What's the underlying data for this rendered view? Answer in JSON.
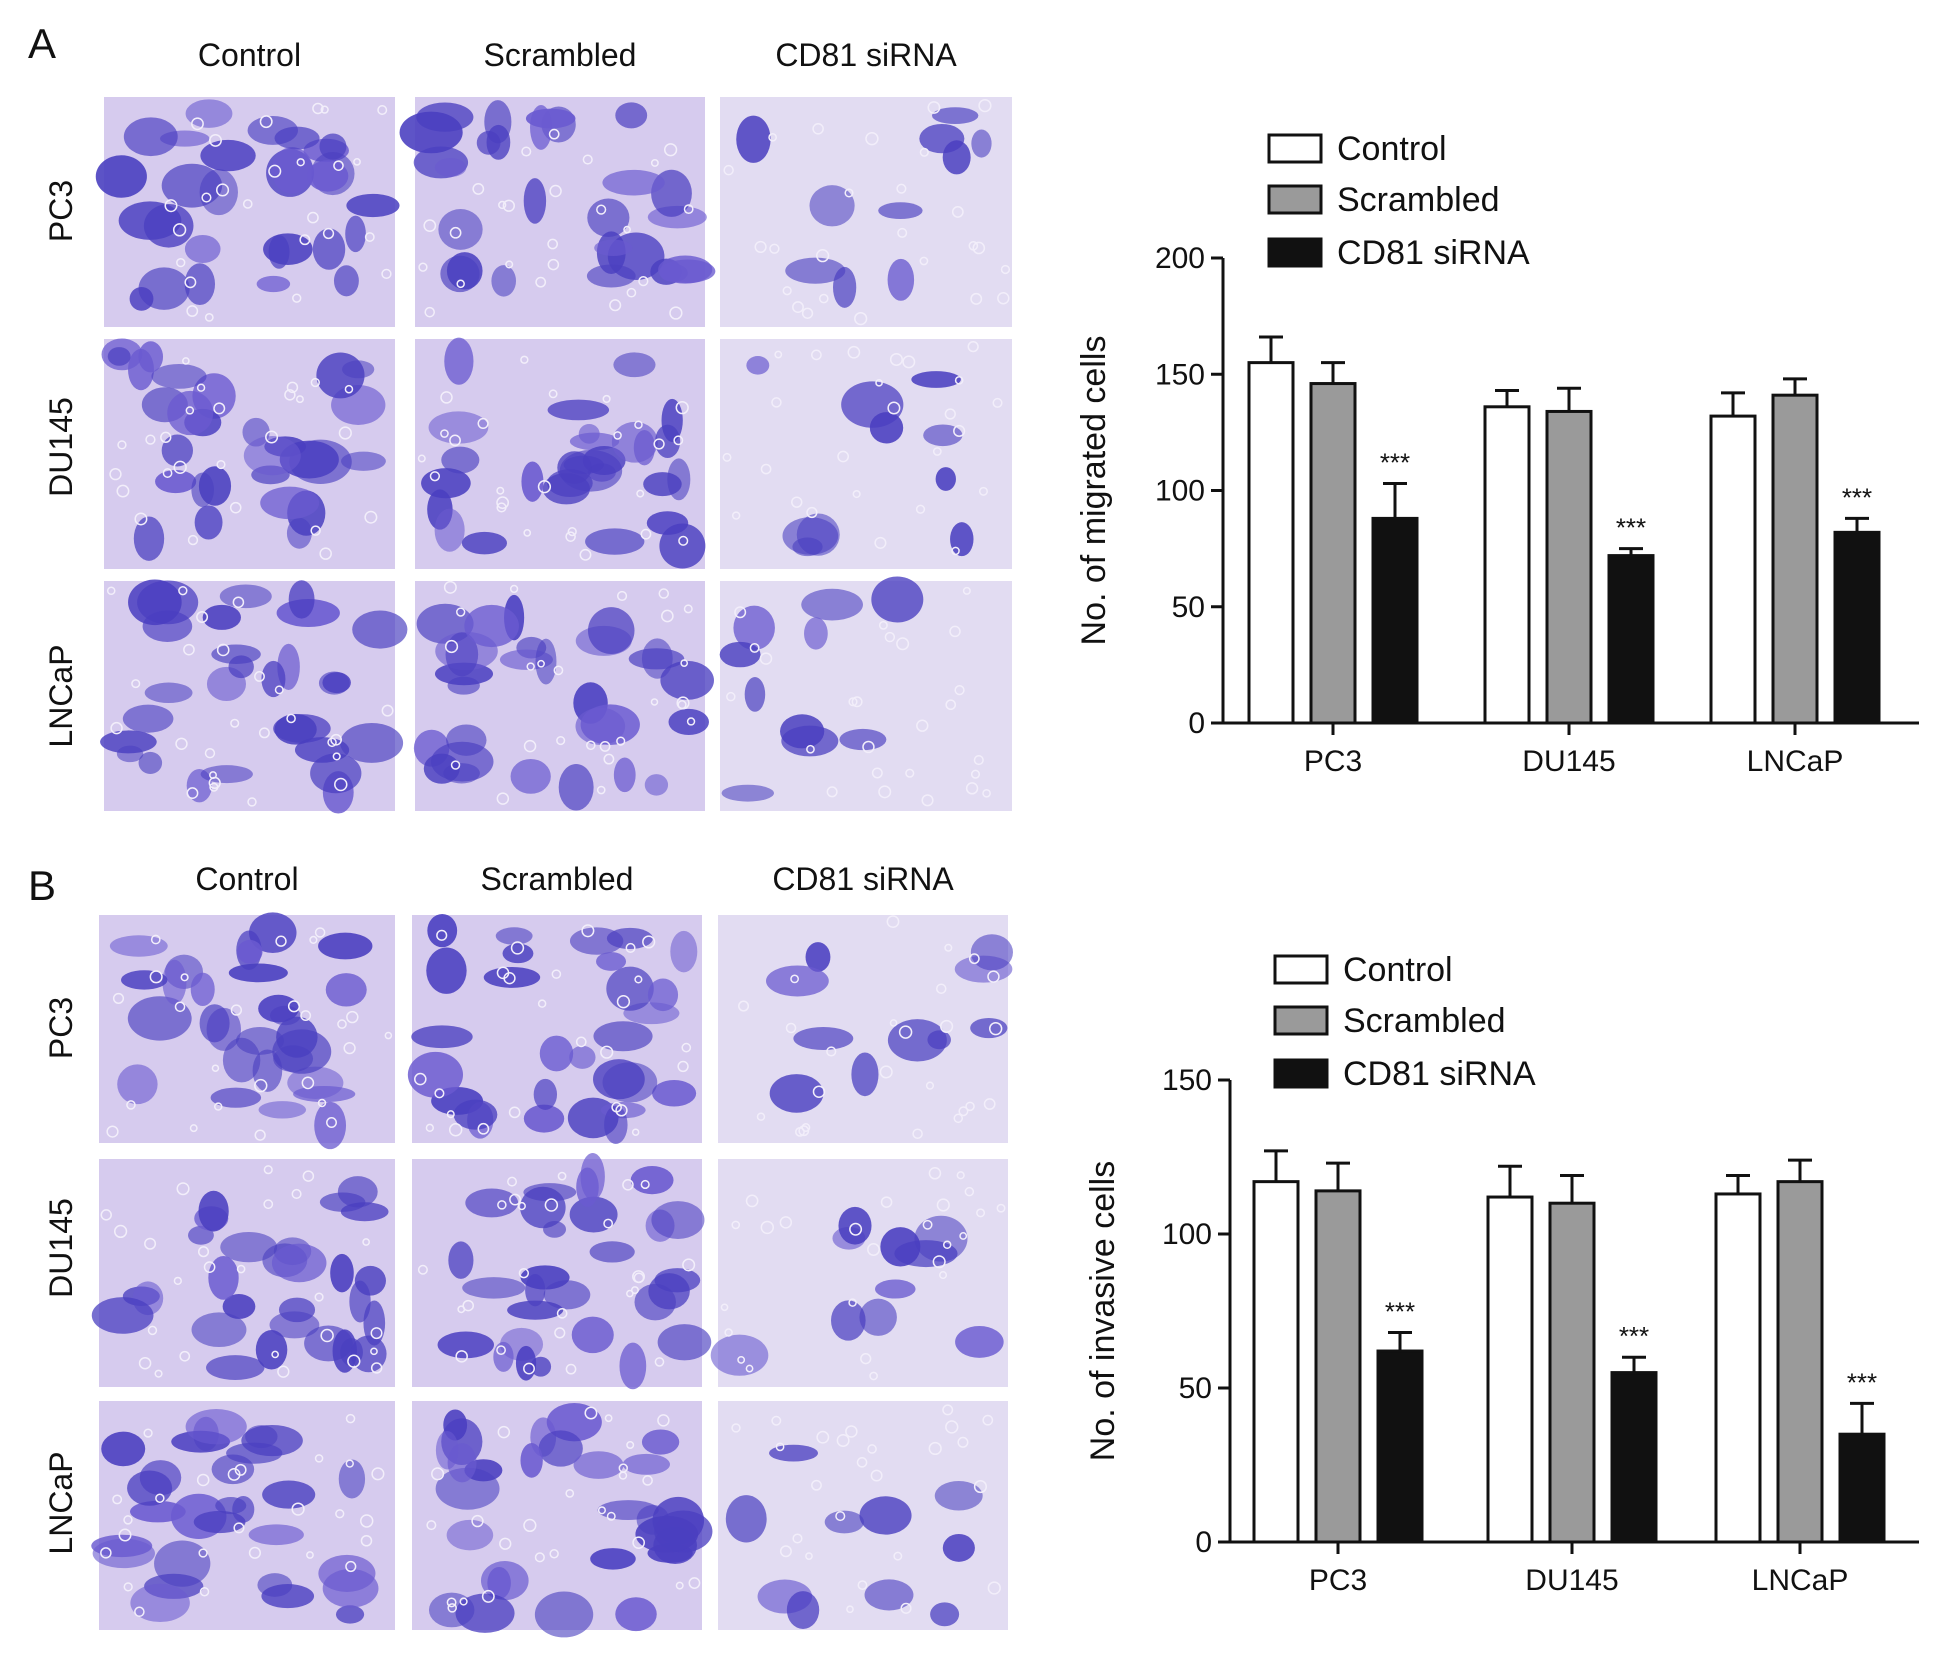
{
  "panels": [
    {
      "label": "A",
      "columns": [
        "Control",
        "Scrambled",
        "CD81 siRNA"
      ],
      "rows": [
        "PC3",
        "DU145",
        "LNCaP"
      ]
    },
    {
      "label": "B",
      "columns": [
        "Control",
        "Scrambled",
        "CD81 siRNA"
      ],
      "rows": [
        "PC3",
        "DU145",
        "LNCaP"
      ]
    }
  ],
  "chart_data": [
    {
      "type": "bar",
      "ylabel": "No. of migrated cells",
      "categories": [
        "PC3",
        "DU145",
        "LNCaP"
      ],
      "series": [
        {
          "name": "Control",
          "color": "#ffffff",
          "values": [
            155,
            136,
            132
          ],
          "errors": [
            11,
            7,
            10
          ]
        },
        {
          "name": "Scrambled",
          "color": "#9a9a9a",
          "values": [
            146,
            134,
            141
          ],
          "errors": [
            9,
            10,
            7
          ]
        },
        {
          "name": "CD81 siRNA",
          "color": "#111111",
          "values": [
            88,
            72,
            82
          ],
          "errors": [
            15,
            3,
            6
          ],
          "significance": [
            "***",
            "***",
            "***"
          ]
        }
      ],
      "ylim": [
        0,
        200
      ],
      "yticks": [
        0,
        50,
        100,
        150,
        200
      ]
    },
    {
      "type": "bar",
      "ylabel": "No. of invasive cells",
      "categories": [
        "PC3",
        "DU145",
        "LNCaP"
      ],
      "series": [
        {
          "name": "Control",
          "color": "#ffffff",
          "values": [
            117,
            112,
            113
          ],
          "errors": [
            10,
            10,
            6
          ]
        },
        {
          "name": "Scrambled",
          "color": "#9a9a9a",
          "values": [
            114,
            110,
            117
          ],
          "errors": [
            9,
            9,
            7
          ]
        },
        {
          "name": "CD81 siRNA",
          "color": "#111111",
          "values": [
            62,
            55,
            35
          ],
          "errors": [
            6,
            5,
            10
          ],
          "significance": [
            "***",
            "***",
            "***"
          ]
        }
      ],
      "ylim": [
        0,
        150
      ],
      "yticks": [
        0,
        50,
        100,
        150
      ]
    }
  ]
}
